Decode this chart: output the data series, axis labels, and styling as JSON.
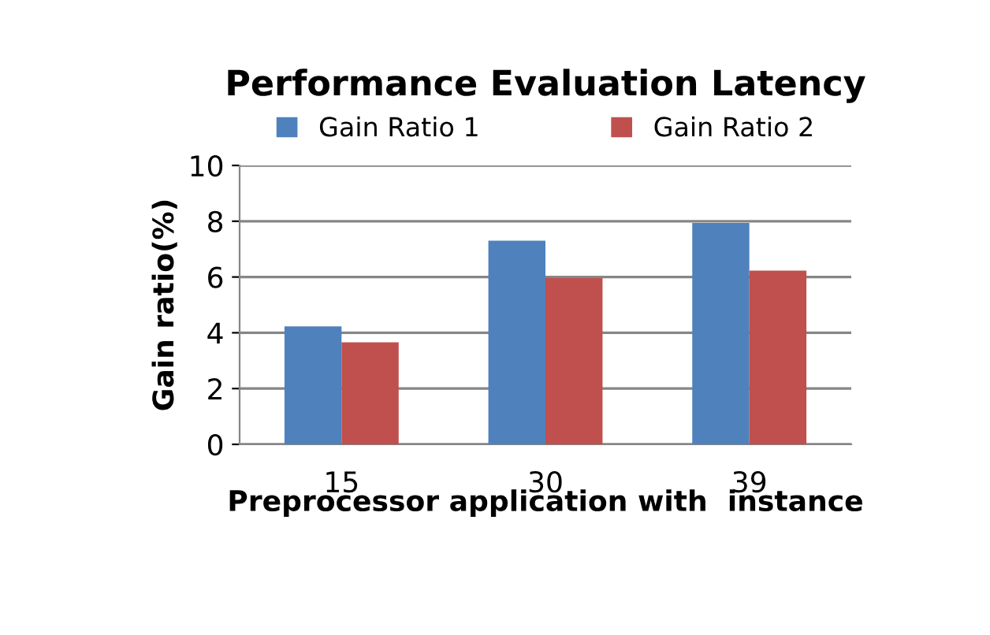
{
  "chart_data": {
    "type": "bar",
    "title": "Performance Evaluation Latency",
    "xlabel": "Preprocessor application with  instance",
    "ylabel": "Gain ratio(%)",
    "categories": [
      "15",
      "30",
      "39"
    ],
    "series": [
      {
        "name": "Gain Ratio 1",
        "color": "#4f81bd",
        "values": [
          4.23,
          7.3,
          7.94
        ]
      },
      {
        "name": "Gain Ratio 2",
        "color": "#c0504d",
        "values": [
          3.66,
          5.96,
          6.23
        ]
      }
    ],
    "ylim": [
      0,
      10
    ],
    "yticks": [
      0,
      2,
      4,
      6,
      8,
      10
    ],
    "grid": "y",
    "legend": "top"
  }
}
